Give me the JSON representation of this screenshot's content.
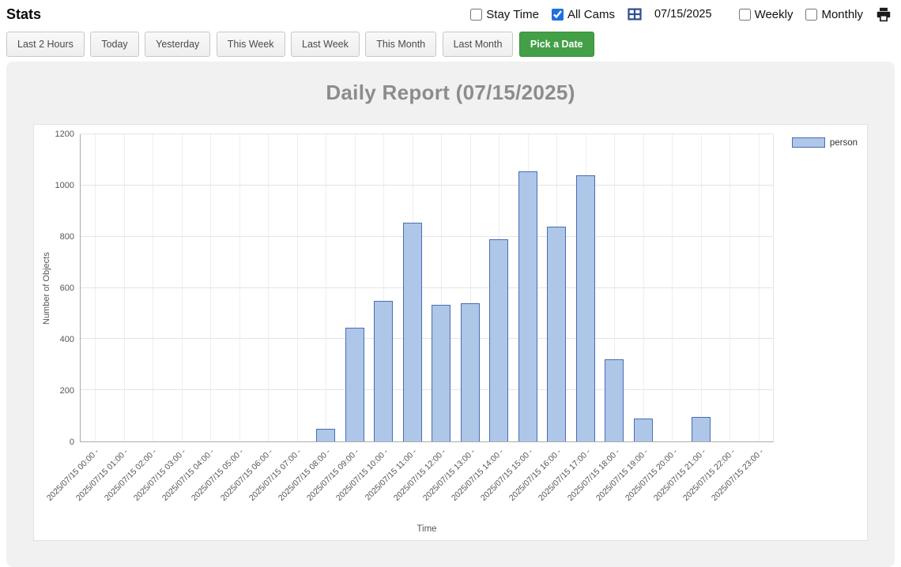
{
  "header": {
    "title": "Stats",
    "stay_time_label": "Stay Time",
    "stay_time_checked": false,
    "all_cams_label": "All Cams",
    "all_cams_checked": true,
    "date_value": "07/15/2025",
    "weekly_label": "Weekly",
    "weekly_checked": false,
    "monthly_label": "Monthly",
    "monthly_checked": false
  },
  "toolbar": {
    "buttons": [
      "Last 2 Hours",
      "Today",
      "Yesterday",
      "This Week",
      "Last Week",
      "This Month",
      "Last Month"
    ],
    "active_button": "Pick a Date"
  },
  "report": {
    "title": "Daily Report (07/15/2025)"
  },
  "chart_data": {
    "type": "bar",
    "title": "Daily Report (07/15/2025)",
    "xlabel": "Time",
    "ylabel": "Number of Objects",
    "ylim": [
      0,
      1200
    ],
    "ytick_step": 200,
    "grid": true,
    "legend": [
      "person"
    ],
    "legend_position": "top-right",
    "series_fill": "#aec6e8",
    "series_border": "#4a6db3",
    "categories": [
      "2025/07/15 00:00 -",
      "2025/07/15 01:00 -",
      "2025/07/15 02:00 -",
      "2025/07/15 03:00 -",
      "2025/07/15 04:00 -",
      "2025/07/15 05:00 -",
      "2025/07/15 06:00 -",
      "2025/07/15 07:00 -",
      "2025/07/15 08:00 -",
      "2025/07/15 09:00 -",
      "2025/07/15 10:00 -",
      "2025/07/15 11:00 -",
      "2025/07/15 12:00 -",
      "2025/07/15 13:00 -",
      "2025/07/15 14:00 -",
      "2025/07/15 15:00 -",
      "2025/07/15 16:00 -",
      "2025/07/15 17:00 -",
      "2025/07/15 18:00 -",
      "2025/07/15 19:00 -",
      "2025/07/15 20:00 -",
      "2025/07/15 21:00 -",
      "2025/07/15 22:00 -",
      "2025/07/15 23:00 -"
    ],
    "values": [
      0,
      0,
      0,
      0,
      0,
      0,
      0,
      0,
      50,
      445,
      550,
      855,
      535,
      540,
      790,
      1055,
      840,
      1040,
      320,
      90,
      0,
      95,
      0,
      0
    ]
  }
}
